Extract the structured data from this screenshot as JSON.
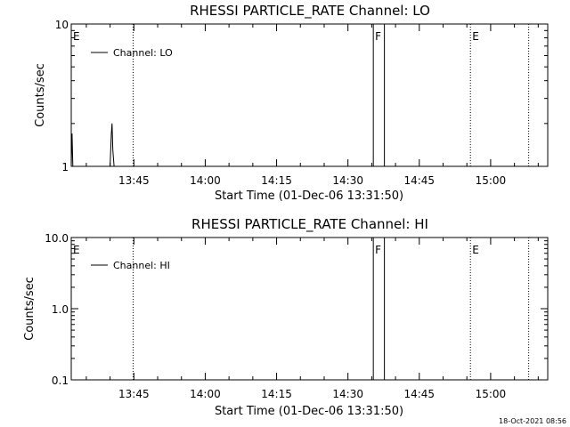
{
  "timestamp": "18-Oct-2021 08:56",
  "chart_data": [
    {
      "type": "line",
      "title": "RHESSI PARTICLE_RATE Channel: LO",
      "xlabel": "Start Time (01-Dec-06 13:31:50)",
      "ylabel": "Counts/sec",
      "yscale": "log",
      "ylim": [
        1,
        10
      ],
      "xlim": [
        "13:31:50",
        "15:12:00"
      ],
      "x_ticks": [
        "13:45",
        "14:00",
        "14:15",
        "14:30",
        "14:45",
        "15:00"
      ],
      "y_ticks": [
        "1",
        "10"
      ],
      "legend": {
        "label": "Channel: LO",
        "position": "top-left"
      },
      "flags": [
        {
          "letter": "E",
          "time": "13:31:50"
        },
        {
          "letter": "F",
          "time": "14:35:20"
        },
        {
          "letter": "E",
          "time": "14:55:45"
        }
      ],
      "dotted_lines": [
        "13:44:50",
        "14:55:45",
        "15:08:00"
      ],
      "solid_lines": [
        "14:35:20",
        "14:37:40"
      ],
      "series": [
        {
          "points": [
            [
              "13:31:50",
              1.0
            ],
            [
              "13:32:00",
              1.7
            ],
            [
              "13:32:10",
              1.0
            ],
            [
              "13:40:00",
              1.0
            ],
            [
              "13:40:15",
              1.7
            ],
            [
              "13:40:25",
              2.0
            ],
            [
              "13:40:35",
              1.3
            ],
            [
              "13:40:50",
              1.0
            ]
          ]
        }
      ]
    },
    {
      "type": "line",
      "title": "RHESSI PARTICLE_RATE Channel: HI",
      "xlabel": "Start Time (01-Dec-06 13:31:50)",
      "ylabel": "Counts/sec",
      "yscale": "log",
      "ylim": [
        0.1,
        10
      ],
      "xlim": [
        "13:31:50",
        "15:12:00"
      ],
      "x_ticks": [
        "13:45",
        "14:00",
        "14:15",
        "14:30",
        "14:45",
        "15:00"
      ],
      "y_ticks": [
        "0.1",
        "1.0",
        "10.0"
      ],
      "legend": {
        "label": "Channel: HI",
        "position": "top-left"
      },
      "flags": [
        {
          "letter": "E",
          "time": "13:31:50"
        },
        {
          "letter": "F",
          "time": "14:35:20"
        },
        {
          "letter": "E",
          "time": "14:55:45"
        }
      ],
      "dotted_lines": [
        "13:44:50",
        "14:55:45",
        "15:08:00"
      ],
      "solid_lines": [
        "14:35:20",
        "14:37:40"
      ],
      "series": [
        {
          "points": []
        }
      ]
    }
  ]
}
